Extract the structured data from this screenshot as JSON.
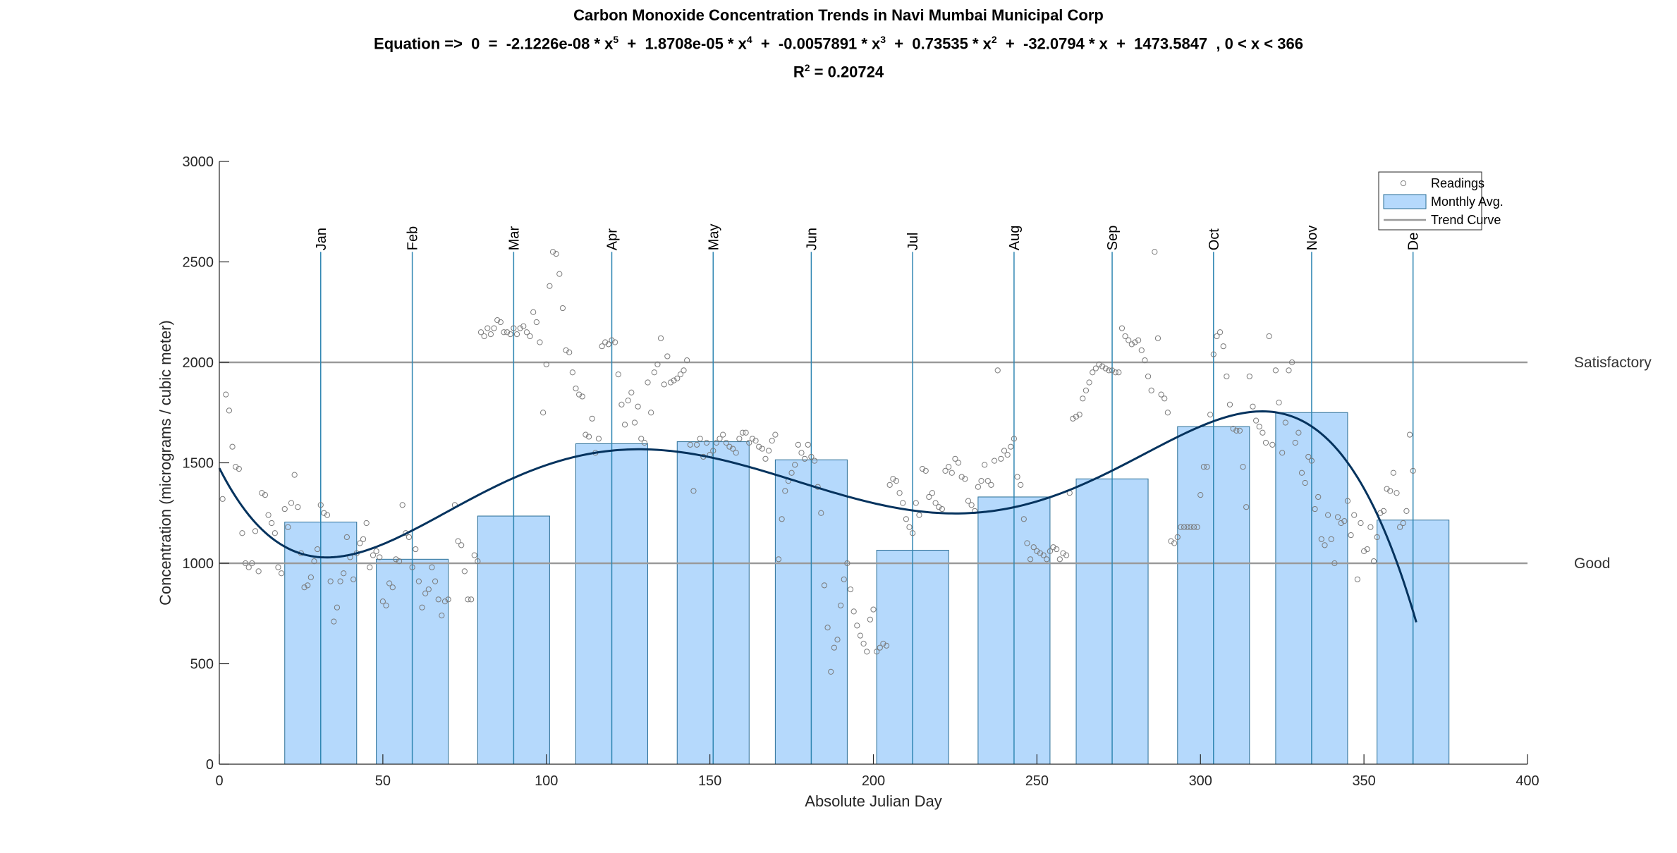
{
  "chart_data": {
    "type": "bar",
    "title": "Carbon Monoxide Concentration Trends in Navi Mumbai Municipal Corp",
    "equation": {
      "prefix": "Equation =>  0  =  -2.1226e-08 * x",
      "e5": "5",
      "t4": "  +  1.8708e-05 * x",
      "e4": "4",
      "t3": "  +  -0.0057891 * x",
      "e3": "3",
      "t2": "  +  0.73535 * x",
      "e2": "2",
      "suffix": "  +  -32.0794 * x  +  1473.5847  , 0 < x < 366"
    },
    "r2": {
      "base": "R",
      "exp": "2",
      "value": " = 0.20724"
    },
    "coefficients": [
      -2.1226e-08,
      1.8708e-05,
      -0.0057891,
      0.73535,
      -32.0794,
      1473.5847
    ],
    "domain": [
      0,
      366
    ],
    "xlabel": "Absolute Julian Day",
    "ylabel": "Concentration (micrograms / cubic meter)",
    "xlim": [
      0,
      400
    ],
    "ylim": [
      0,
      3000
    ],
    "xticks": [
      0,
      50,
      100,
      150,
      200,
      250,
      300,
      350,
      400
    ],
    "yticks": [
      0,
      500,
      1000,
      1500,
      2000,
      2500,
      3000
    ],
    "months": [
      {
        "label": "Jan",
        "day": 31,
        "avg": 1205
      },
      {
        "label": "Feb",
        "day": 59,
        "avg": 1020
      },
      {
        "label": "Mar",
        "day": 90,
        "avg": 1235
      },
      {
        "label": "Apr",
        "day": 120,
        "avg": 1595
      },
      {
        "label": "May",
        "day": 151,
        "avg": 1605
      },
      {
        "label": "Jun",
        "day": 181,
        "avg": 1515
      },
      {
        "label": "Jul",
        "day": 212,
        "avg": 1065
      },
      {
        "label": "Aug",
        "day": 243,
        "avg": 1330
      },
      {
        "label": "Sep",
        "day": 273,
        "avg": 1420
      },
      {
        "label": "Oct",
        "day": 304,
        "avg": 1680
      },
      {
        "label": "Nov",
        "day": 334,
        "avg": 1750
      },
      {
        "label": "De",
        "day": 365,
        "avg": 1215
      }
    ],
    "bar_width_days": 22,
    "reference_lines": [
      {
        "label": "Satisfactory",
        "value": 2000
      },
      {
        "label": "Good",
        "value": 1000
      }
    ],
    "legend": {
      "position": "top-right",
      "items": [
        "Readings",
        "Monthly Avg.",
        "Trend Curve"
      ]
    },
    "readings": [
      [
        1,
        1320
      ],
      [
        2,
        1840
      ],
      [
        3,
        1760
      ],
      [
        4,
        1580
      ],
      [
        5,
        1480
      ],
      [
        6,
        1470
      ],
      [
        7,
        1150
      ],
      [
        8,
        1000
      ],
      [
        9,
        980
      ],
      [
        10,
        1000
      ],
      [
        11,
        1160
      ],
      [
        12,
        960
      ],
      [
        13,
        1350
      ],
      [
        14,
        1340
      ],
      [
        15,
        1240
      ],
      [
        16,
        1200
      ],
      [
        17,
        1150
      ],
      [
        18,
        980
      ],
      [
        19,
        950
      ],
      [
        20,
        1270
      ],
      [
        21,
        1180
      ],
      [
        22,
        1300
      ],
      [
        23,
        1440
      ],
      [
        24,
        1280
      ],
      [
        25,
        1050
      ],
      [
        26,
        880
      ],
      [
        27,
        890
      ],
      [
        28,
        930
      ],
      [
        29,
        1010
      ],
      [
        30,
        1070
      ],
      [
        31,
        1290
      ],
      [
        32,
        1250
      ],
      [
        33,
        1240
      ],
      [
        34,
        910
      ],
      [
        35,
        710
      ],
      [
        36,
        780
      ],
      [
        37,
        910
      ],
      [
        38,
        950
      ],
      [
        39,
        1130
      ],
      [
        40,
        1030
      ],
      [
        41,
        920
      ],
      [
        42,
        1050
      ],
      [
        43,
        1100
      ],
      [
        44,
        1120
      ],
      [
        45,
        1200
      ],
      [
        46,
        980
      ],
      [
        47,
        1040
      ],
      [
        48,
        1060
      ],
      [
        49,
        1030
      ],
      [
        50,
        810
      ],
      [
        51,
        790
      ],
      [
        52,
        900
      ],
      [
        53,
        880
      ],
      [
        54,
        1020
      ],
      [
        55,
        1010
      ],
      [
        56,
        1290
      ],
      [
        57,
        1150
      ],
      [
        58,
        1130
      ],
      [
        59,
        980
      ],
      [
        60,
        1070
      ],
      [
        61,
        910
      ],
      [
        62,
        780
      ],
      [
        63,
        850
      ],
      [
        64,
        870
      ],
      [
        65,
        980
      ],
      [
        66,
        910
      ],
      [
        67,
        820
      ],
      [
        68,
        740
      ],
      [
        69,
        810
      ],
      [
        70,
        820
      ],
      [
        72,
        1290
      ],
      [
        73,
        1110
      ],
      [
        74,
        1090
      ],
      [
        75,
        960
      ],
      [
        76,
        820
      ],
      [
        77,
        820
      ],
      [
        78,
        1040
      ],
      [
        79,
        1010
      ],
      [
        80,
        2150
      ],
      [
        81,
        2130
      ],
      [
        82,
        2170
      ],
      [
        83,
        2140
      ],
      [
        84,
        2170
      ],
      [
        85,
        2210
      ],
      [
        86,
        2200
      ],
      [
        87,
        2150
      ],
      [
        88,
        2150
      ],
      [
        89,
        2140
      ],
      [
        90,
        2170
      ],
      [
        91,
        2140
      ],
      [
        92,
        2170
      ],
      [
        93,
        2180
      ],
      [
        94,
        2150
      ],
      [
        95,
        2130
      ],
      [
        96,
        2250
      ],
      [
        97,
        2200
      ],
      [
        98,
        2100
      ],
      [
        99,
        1750
      ],
      [
        100,
        1990
      ],
      [
        101,
        2380
      ],
      [
        102,
        2550
      ],
      [
        103,
        2540
      ],
      [
        104,
        2440
      ],
      [
        105,
        2270
      ],
      [
        106,
        2060
      ],
      [
        107,
        2050
      ],
      [
        108,
        1950
      ],
      [
        109,
        1870
      ],
      [
        110,
        1840
      ],
      [
        111,
        1830
      ],
      [
        112,
        1640
      ],
      [
        113,
        1630
      ],
      [
        114,
        1720
      ],
      [
        115,
        1550
      ],
      [
        116,
        1620
      ],
      [
        117,
        2080
      ],
      [
        118,
        2100
      ],
      [
        119,
        2090
      ],
      [
        120,
        2110
      ],
      [
        121,
        2100
      ],
      [
        122,
        1940
      ],
      [
        123,
        1790
      ],
      [
        124,
        1690
      ],
      [
        125,
        1810
      ],
      [
        126,
        1850
      ],
      [
        127,
        1700
      ],
      [
        128,
        1780
      ],
      [
        129,
        1620
      ],
      [
        130,
        1600
      ],
      [
        131,
        1900
      ],
      [
        132,
        1750
      ],
      [
        133,
        1950
      ],
      [
        134,
        1990
      ],
      [
        135,
        2120
      ],
      [
        136,
        1890
      ],
      [
        137,
        2030
      ],
      [
        138,
        1900
      ],
      [
        139,
        1910
      ],
      [
        140,
        1920
      ],
      [
        141,
        1940
      ],
      [
        142,
        1960
      ],
      [
        143,
        2010
      ],
      [
        144,
        1590
      ],
      [
        145,
        1360
      ],
      [
        146,
        1590
      ],
      [
        147,
        1620
      ],
      [
        148,
        1530
      ],
      [
        149,
        1600
      ],
      [
        150,
        1540
      ],
      [
        151,
        1560
      ],
      [
        152,
        1600
      ],
      [
        153,
        1620
      ],
      [
        154,
        1640
      ],
      [
        155,
        1600
      ],
      [
        156,
        1580
      ],
      [
        157,
        1570
      ],
      [
        158,
        1550
      ],
      [
        159,
        1620
      ],
      [
        160,
        1650
      ],
      [
        161,
        1650
      ],
      [
        162,
        1600
      ],
      [
        163,
        1620
      ],
      [
        164,
        1610
      ],
      [
        165,
        1580
      ],
      [
        166,
        1570
      ],
      [
        167,
        1520
      ],
      [
        168,
        1560
      ],
      [
        169,
        1610
      ],
      [
        170,
        1640
      ],
      [
        171,
        1020
      ],
      [
        172,
        1220
      ],
      [
        173,
        1360
      ],
      [
        174,
        1410
      ],
      [
        175,
        1450
      ],
      [
        176,
        1490
      ],
      [
        177,
        1590
      ],
      [
        178,
        1550
      ],
      [
        179,
        1520
      ],
      [
        180,
        1590
      ],
      [
        181,
        1530
      ],
      [
        182,
        1510
      ],
      [
        183,
        1380
      ],
      [
        184,
        1250
      ],
      [
        185,
        890
      ],
      [
        186,
        680
      ],
      [
        187,
        460
      ],
      [
        188,
        580
      ],
      [
        189,
        620
      ],
      [
        190,
        790
      ],
      [
        191,
        920
      ],
      [
        192,
        1000
      ],
      [
        193,
        870
      ],
      [
        194,
        760
      ],
      [
        195,
        690
      ],
      [
        196,
        640
      ],
      [
        197,
        600
      ],
      [
        198,
        560
      ],
      [
        199,
        720
      ],
      [
        200,
        770
      ],
      [
        201,
        560
      ],
      [
        202,
        580
      ],
      [
        203,
        600
      ],
      [
        204,
        590
      ],
      [
        205,
        1390
      ],
      [
        206,
        1420
      ],
      [
        207,
        1410
      ],
      [
        208,
        1350
      ],
      [
        209,
        1300
      ],
      [
        210,
        1220
      ],
      [
        211,
        1180
      ],
      [
        212,
        1150
      ],
      [
        213,
        1300
      ],
      [
        214,
        1240
      ],
      [
        215,
        1470
      ],
      [
        216,
        1460
      ],
      [
        217,
        1330
      ],
      [
        218,
        1350
      ],
      [
        219,
        1300
      ],
      [
        220,
        1280
      ],
      [
        221,
        1270
      ],
      [
        222,
        1460
      ],
      [
        223,
        1480
      ],
      [
        224,
        1450
      ],
      [
        225,
        1520
      ],
      [
        226,
        1500
      ],
      [
        227,
        1430
      ],
      [
        228,
        1420
      ],
      [
        229,
        1310
      ],
      [
        230,
        1290
      ],
      [
        231,
        1260
      ],
      [
        232,
        1380
      ],
      [
        233,
        1410
      ],
      [
        234,
        1490
      ],
      [
        235,
        1410
      ],
      [
        236,
        1390
      ],
      [
        237,
        1510
      ],
      [
        238,
        1960
      ],
      [
        239,
        1520
      ],
      [
        240,
        1560
      ],
      [
        241,
        1540
      ],
      [
        242,
        1580
      ],
      [
        243,
        1620
      ],
      [
        244,
        1430
      ],
      [
        245,
        1390
      ],
      [
        246,
        1220
      ],
      [
        247,
        1100
      ],
      [
        248,
        1020
      ],
      [
        249,
        1080
      ],
      [
        250,
        1060
      ],
      [
        251,
        1050
      ],
      [
        252,
        1040
      ],
      [
        253,
        1020
      ],
      [
        254,
        1060
      ],
      [
        255,
        1080
      ],
      [
        256,
        1070
      ],
      [
        257,
        1020
      ],
      [
        258,
        1050
      ],
      [
        259,
        1040
      ],
      [
        260,
        1350
      ],
      [
        261,
        1720
      ],
      [
        262,
        1730
      ],
      [
        263,
        1740
      ],
      [
        264,
        1820
      ],
      [
        265,
        1860
      ],
      [
        266,
        1900
      ],
      [
        267,
        1950
      ],
      [
        268,
        1970
      ],
      [
        269,
        1990
      ],
      [
        270,
        1980
      ],
      [
        271,
        1970
      ],
      [
        272,
        1960
      ],
      [
        273,
        1960
      ],
      [
        274,
        1950
      ],
      [
        275,
        1950
      ],
      [
        276,
        2170
      ],
      [
        277,
        2130
      ],
      [
        278,
        2110
      ],
      [
        279,
        2090
      ],
      [
        280,
        2100
      ],
      [
        281,
        2110
      ],
      [
        282,
        2060
      ],
      [
        283,
        2010
      ],
      [
        284,
        1930
      ],
      [
        285,
        1860
      ],
      [
        286,
        2550
      ],
      [
        287,
        2120
      ],
      [
        288,
        1840
      ],
      [
        289,
        1820
      ],
      [
        290,
        1750
      ],
      [
        291,
        1110
      ],
      [
        292,
        1100
      ],
      [
        293,
        1130
      ],
      [
        294,
        1180
      ],
      [
        295,
        1180
      ],
      [
        296,
        1180
      ],
      [
        297,
        1180
      ],
      [
        298,
        1180
      ],
      [
        299,
        1180
      ],
      [
        300,
        1340
      ],
      [
        301,
        1480
      ],
      [
        302,
        1480
      ],
      [
        303,
        1740
      ],
      [
        304,
        2040
      ],
      [
        305,
        2130
      ],
      [
        306,
        2150
      ],
      [
        307,
        2080
      ],
      [
        308,
        1930
      ],
      [
        309,
        1790
      ],
      [
        310,
        1670
      ],
      [
        311,
        1660
      ],
      [
        312,
        1660
      ],
      [
        313,
        1480
      ],
      [
        314,
        1280
      ],
      [
        315,
        1930
      ],
      [
        316,
        1780
      ],
      [
        317,
        1710
      ],
      [
        318,
        1680
      ],
      [
        319,
        1650
      ],
      [
        320,
        1600
      ],
      [
        321,
        2130
      ],
      [
        322,
        1590
      ],
      [
        323,
        1960
      ],
      [
        324,
        1800
      ],
      [
        325,
        1550
      ],
      [
        326,
        1700
      ],
      [
        327,
        1960
      ],
      [
        328,
        2000
      ],
      [
        329,
        1600
      ],
      [
        330,
        1650
      ],
      [
        331,
        1450
      ],
      [
        332,
        1400
      ],
      [
        333,
        1530
      ],
      [
        334,
        1510
      ],
      [
        335,
        1270
      ],
      [
        336,
        1330
      ],
      [
        337,
        1120
      ],
      [
        338,
        1090
      ],
      [
        339,
        1240
      ],
      [
        340,
        1120
      ],
      [
        341,
        1000
      ],
      [
        342,
        1230
      ],
      [
        343,
        1200
      ],
      [
        344,
        1210
      ],
      [
        345,
        1310
      ],
      [
        346,
        1140
      ],
      [
        347,
        1240
      ],
      [
        348,
        920
      ],
      [
        349,
        1200
      ],
      [
        350,
        1060
      ],
      [
        351,
        1070
      ],
      [
        352,
        1180
      ],
      [
        353,
        1010
      ],
      [
        354,
        1130
      ],
      [
        355,
        1250
      ],
      [
        356,
        1260
      ],
      [
        357,
        1370
      ],
      [
        358,
        1360
      ],
      [
        359,
        1450
      ],
      [
        360,
        1350
      ],
      [
        361,
        1180
      ],
      [
        362,
        1200
      ],
      [
        363,
        1260
      ],
      [
        364,
        1640
      ],
      [
        365,
        1460
      ]
    ]
  }
}
